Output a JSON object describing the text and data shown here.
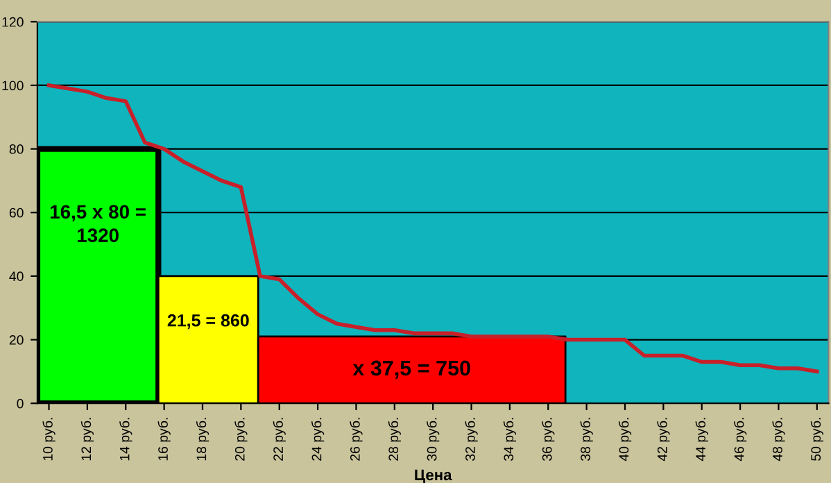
{
  "chart_data": {
    "type": "line",
    "xlabel": "Цена",
    "xlim": [
      9.4,
      50.6
    ],
    "ylim": [
      0,
      120
    ],
    "yticks": [
      0,
      20,
      40,
      60,
      80,
      100,
      120
    ],
    "xticks": [
      {
        "value": 10,
        "label": "10 руб."
      },
      {
        "value": 12,
        "label": "12 руб."
      },
      {
        "value": 14,
        "label": "14 руб."
      },
      {
        "value": 16,
        "label": "16 руб."
      },
      {
        "value": 18,
        "label": "18 руб."
      },
      {
        "value": 20,
        "label": "20 руб."
      },
      {
        "value": 22,
        "label": "22 руб."
      },
      {
        "value": 24,
        "label": "24 руб."
      },
      {
        "value": 26,
        "label": "26 руб."
      },
      {
        "value": 28,
        "label": "28 руб."
      },
      {
        "value": 30,
        "label": "30 руб."
      },
      {
        "value": 32,
        "label": "32 руб."
      },
      {
        "value": 34,
        "label": "34 руб."
      },
      {
        "value": 36,
        "label": "36 руб."
      },
      {
        "value": 38,
        "label": "38 руб."
      },
      {
        "value": 40,
        "label": "40 руб."
      },
      {
        "value": 42,
        "label": "42 руб."
      },
      {
        "value": 44,
        "label": "44 руб."
      },
      {
        "value": 46,
        "label": "46 руб."
      },
      {
        "value": 48,
        "label": "48 руб."
      },
      {
        "value": 50,
        "label": "50 руб."
      }
    ],
    "grid": "y",
    "series": [
      {
        "type": "area",
        "color": "#00ff00",
        "x": [
          9.4,
          15.7
        ],
        "values": [
          80,
          80
        ]
      },
      {
        "type": "area",
        "color": "#ffff00",
        "x": [
          15.7,
          20.9
        ],
        "values": [
          40,
          40
        ]
      },
      {
        "type": "area",
        "color": "#ff0000",
        "x": [
          20.9,
          36.9
        ],
        "values": [
          21,
          21
        ]
      },
      {
        "color": "#c8202a",
        "x": [
          10,
          11,
          12,
          13,
          14,
          15,
          16,
          17,
          18,
          19,
          20,
          21,
          22,
          23,
          24,
          25,
          26,
          27,
          28,
          29,
          30,
          31,
          32,
          33,
          34,
          35,
          36,
          37,
          38,
          39,
          40,
          41,
          42,
          43,
          44,
          45,
          46,
          47,
          48,
          49,
          50
        ],
        "values": [
          100,
          99,
          98,
          96,
          95,
          82,
          80,
          76,
          73,
          70,
          68,
          40,
          39,
          33,
          28,
          25,
          24,
          23,
          23,
          22,
          22,
          22,
          21,
          21,
          21,
          21,
          21,
          20,
          20,
          20,
          20,
          15,
          15,
          15,
          13,
          13,
          12,
          12,
          11,
          11,
          10
        ]
      }
    ],
    "annotations": [
      "16,5 x 80 =\n1320",
      "21,5 = 860",
      "x 37,5 = 750"
    ]
  }
}
